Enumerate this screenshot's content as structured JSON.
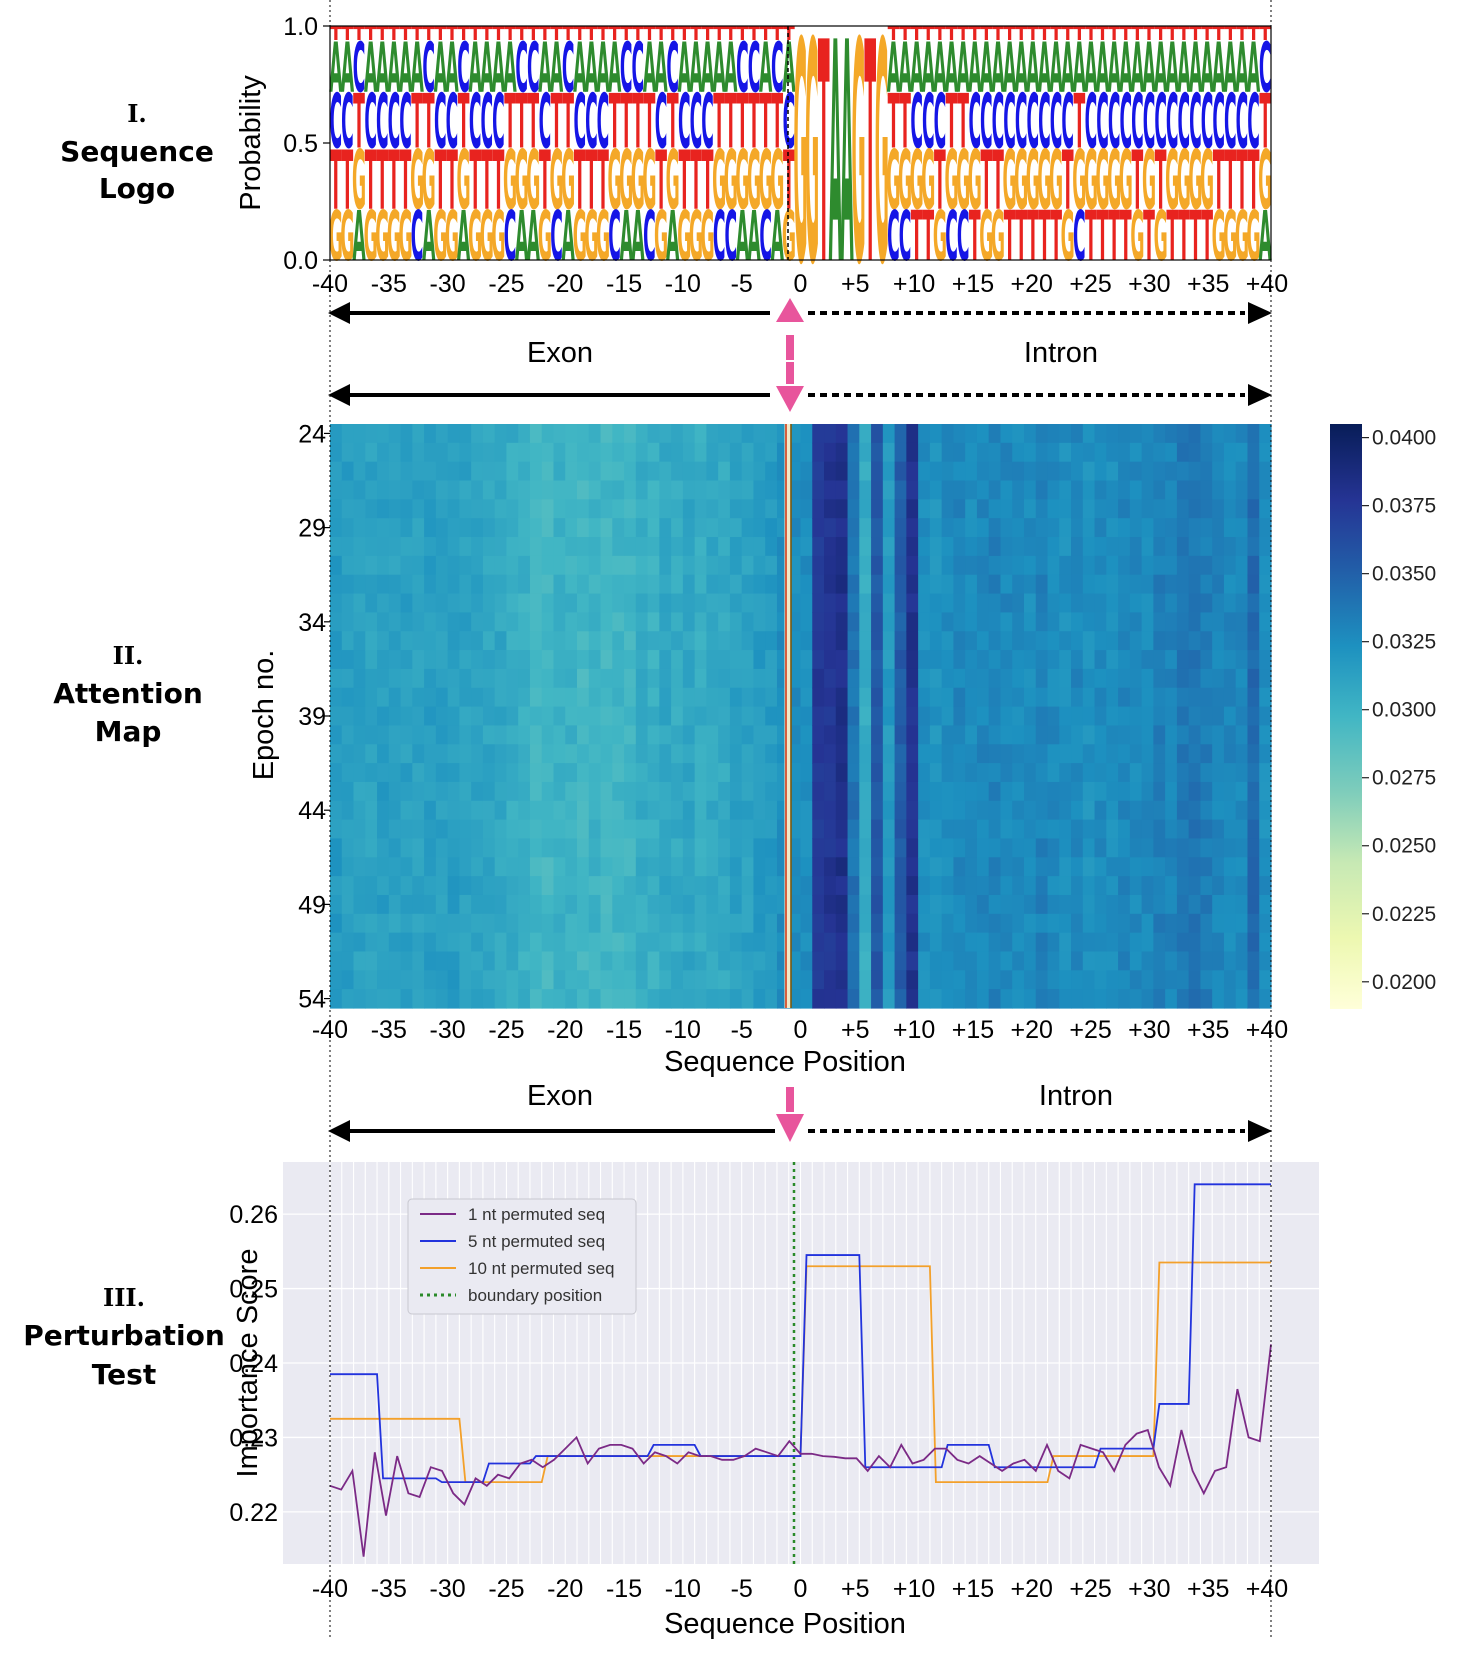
{
  "sections": [
    {
      "num": "I.",
      "lines": [
        "Sequence",
        "Logo"
      ]
    },
    {
      "num": "II.",
      "lines": [
        "Attention",
        "Map"
      ]
    },
    {
      "num": "III.",
      "lines": [
        "Perturbation",
        "Test"
      ]
    }
  ],
  "position_ticks": [
    "-40",
    "-35",
    "-30",
    "-25",
    "-20",
    "-15",
    "-10",
    "-5",
    "0",
    "+5",
    "+10",
    "+15",
    "+20",
    "+25",
    "+30",
    "+35",
    "+40"
  ],
  "regions": {
    "exon": "Exon",
    "intron": "Intron"
  },
  "colors": {
    "A": "#2e8b2e",
    "C": "#1515e6",
    "G": "#f4a828",
    "T": "#e8231f",
    "arrow_pink": "#e8559c",
    "boundary_green": "#2a8a2a"
  },
  "logo_sequence": "GGAGGGGCAGGAGGGCAAGCAGGGCAACGAGGGCCAACAGGTAAGTGCCCTTGCCTGGTTTTTGCTTTTGTGTTTTGG",
  "chart_data": [
    {
      "type": "sequence_logo",
      "title": "Sequence Logo",
      "ylabel": "Probability",
      "ylim": [
        0.0,
        1.0
      ],
      "yticks": [
        "0.0",
        "0.5",
        "1.0"
      ],
      "xlim": [
        -40,
        40
      ],
      "letters": [
        "A",
        "C",
        "G",
        "T"
      ]
    },
    {
      "type": "heatmap",
      "title": "Attention Map",
      "xlabel": "Sequence Position",
      "ylabel": "Epoch no.",
      "yticks": [
        "24",
        "29",
        "34",
        "39",
        "44",
        "49",
        "54"
      ],
      "epochs": [
        24,
        54
      ],
      "xlim": [
        -40,
        40
      ],
      "colorbar": {
        "min": 0.019,
        "max": 0.0405,
        "ticks": [
          "0.0400",
          "0.0375",
          "0.0350",
          "0.0325",
          "0.0300",
          "0.0275",
          "0.0250",
          "0.0225",
          "0.0200"
        ]
      },
      "column_means": [
        0.0318,
        0.0315,
        0.0313,
        0.0312,
        0.0316,
        0.0312,
        0.0314,
        0.0313,
        0.0315,
        0.0314,
        0.0316,
        0.0313,
        0.0312,
        0.031,
        0.0309,
        0.0305,
        0.0302,
        0.0298,
        0.0296,
        0.0302,
        0.0301,
        0.0296,
        0.03,
        0.0297,
        0.0298,
        0.0298,
        0.0305,
        0.0302,
        0.0309,
        0.0306,
        0.031,
        0.0305,
        0.0308,
        0.0307,
        0.0313,
        0.0313,
        0.0317,
        0.0318,
        0.0325,
        0.0327,
        0.0325,
        0.0375,
        0.0378,
        0.0383,
        0.034,
        0.0305,
        0.0355,
        0.0318,
        0.0352,
        0.038,
        0.0325,
        0.0322,
        0.0327,
        0.033,
        0.0327,
        0.033,
        0.0332,
        0.0329,
        0.0328,
        0.0326,
        0.0332,
        0.0328,
        0.0325,
        0.0329,
        0.0323,
        0.0327,
        0.0325,
        0.033,
        0.0328,
        0.0328,
        0.0334,
        0.0331,
        0.0337,
        0.0339,
        0.0335,
        0.0331,
        0.0329,
        0.0329,
        0.0345,
        0.0325
      ]
    },
    {
      "type": "line",
      "title": "Perturbation Test",
      "xlabel": "Sequence Position",
      "ylabel": "Importance Score",
      "ylim": [
        0.213,
        0.267
      ],
      "yticks": [
        "0.22",
        "0.23",
        "0.24",
        "0.25",
        "0.26"
      ],
      "xlim": [
        -40,
        40
      ],
      "legend_position": "upper-left",
      "series": [
        {
          "name": "1 nt permuted seq",
          "color": "#7b2a86",
          "values": [
            0.2235,
            0.223,
            0.2255,
            0.214,
            0.228,
            0.2195,
            0.2275,
            0.2225,
            0.222,
            0.226,
            0.2255,
            0.2225,
            0.221,
            0.2245,
            0.2235,
            0.225,
            0.2245,
            0.2265,
            0.227,
            0.226,
            0.227,
            0.2285,
            0.23,
            0.2265,
            0.2285,
            0.229,
            0.229,
            0.2285,
            0.2265,
            0.228,
            0.2275,
            0.2265,
            0.228,
            0.2275,
            0.2275,
            0.227,
            0.227,
            0.2275,
            0.2285,
            0.228,
            0.2275,
            0.2295,
            0.2278,
            0.2278,
            0.2275,
            0.2274,
            0.2272,
            0.2272,
            0.2255,
            0.2275,
            0.226,
            0.229,
            0.2265,
            0.227,
            0.2285,
            0.2285,
            0.227,
            0.2265,
            0.2275,
            0.2265,
            0.2255,
            0.2265,
            0.227,
            0.2255,
            0.229,
            0.2255,
            0.2245,
            0.229,
            0.2285,
            0.228,
            0.2255,
            0.229,
            0.2305,
            0.231,
            0.226,
            0.2235,
            0.231,
            0.2255,
            0.2225,
            0.2255,
            0.226,
            0.2365,
            0.23,
            0.2295,
            0.2425
          ]
        },
        {
          "name": "5 nt permuted seq",
          "color": "#2233dd",
          "steps": [
            [
              -40,
              0.2385
            ],
            [
              -36,
              0.2245
            ],
            [
              -31,
              0.224
            ],
            [
              -27,
              0.2265
            ],
            [
              -23,
              0.2275
            ],
            [
              -19,
              0.2275
            ],
            [
              -13,
              0.229
            ],
            [
              -9,
              0.2275
            ],
            [
              0,
              0.2545
            ],
            [
              5,
              0.226
            ],
            [
              9,
              0.226
            ],
            [
              12,
              0.229
            ],
            [
              16,
              0.226
            ],
            [
              21,
              0.226
            ],
            [
              25,
              0.2285
            ],
            [
              29,
              0.2285
            ],
            [
              30,
              0.2345
            ],
            [
              33,
              0.264
            ],
            [
              40,
              0.264
            ]
          ]
        },
        {
          "name": "10 nt permuted seq",
          "color": "#f3a02a",
          "steps": [
            [
              -40,
              0.2325
            ],
            [
              -29,
              0.224
            ],
            [
              -22,
              0.2275
            ],
            [
              0,
              0.253
            ],
            [
              11,
              0.224
            ],
            [
              21,
              0.2275
            ],
            [
              30,
              0.2535
            ],
            [
              40,
              0.2535
            ]
          ]
        },
        {
          "name": "boundary position",
          "color": "#2a8a2a",
          "style": "dotted",
          "x": 0
        }
      ]
    }
  ]
}
